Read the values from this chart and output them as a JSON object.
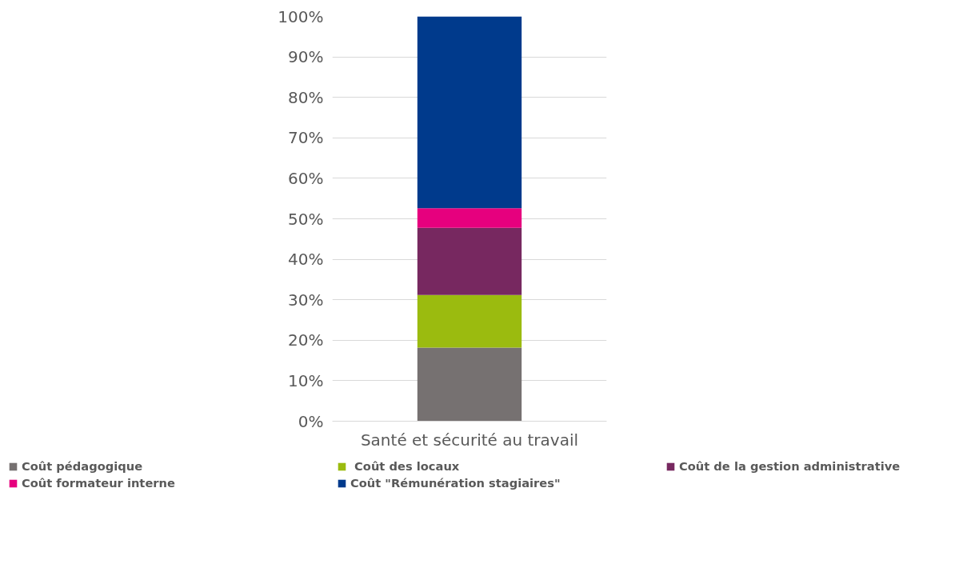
{
  "chart_data": {
    "type": "bar",
    "stacked": true,
    "categories": [
      "Santé et sécurité au travail"
    ],
    "series": [
      {
        "name": "Coût pédagogique",
        "color": "#767171",
        "values": [
          18.2
        ]
      },
      {
        "name": " Coût des locaux",
        "color": "#9bbb0f",
        "values": [
          13.0
        ]
      },
      {
        "name": "Coût de la gestion administrative",
        "color": "#772860",
        "values": [
          16.6
        ]
      },
      {
        "name": "Coût formateur interne",
        "color": "#e6007e",
        "values": [
          4.8
        ]
      },
      {
        "name": "Coût \"Rémunération stagiaires\"",
        "color": "#003a8c",
        "values": [
          47.4
        ]
      }
    ],
    "ylim": [
      0,
      100
    ],
    "yticks": [
      {
        "value": 0,
        "label": "0%"
      },
      {
        "value": 10,
        "label": "10%"
      },
      {
        "value": 20,
        "label": "20%"
      },
      {
        "value": 30,
        "label": "30%"
      },
      {
        "value": 40,
        "label": "40%"
      },
      {
        "value": 50,
        "label": "50%"
      },
      {
        "value": 60,
        "label": "60%"
      },
      {
        "value": 70,
        "label": "70%"
      },
      {
        "value": 80,
        "label": "80%"
      },
      {
        "value": 90,
        "label": "90%"
      },
      {
        "value": 100,
        "label": "100%"
      }
    ],
    "grid": "y",
    "legend": "bottom"
  }
}
